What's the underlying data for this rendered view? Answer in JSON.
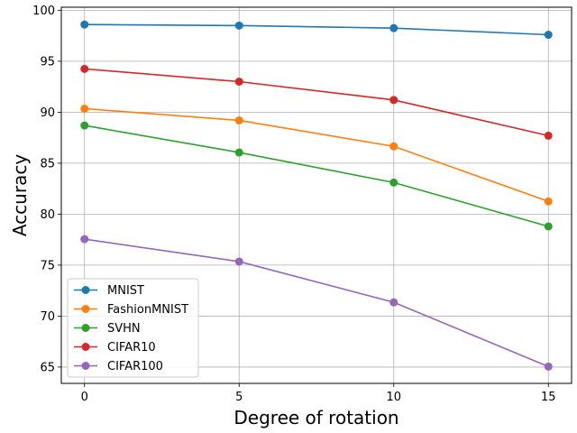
{
  "chart_data": {
    "type": "line",
    "title": "",
    "xlabel": "Degree of rotation",
    "ylabel": "Accuracy",
    "x": [
      0,
      5,
      10,
      15
    ],
    "xticks": [
      0,
      5,
      10,
      15
    ],
    "yticks": [
      65,
      70,
      75,
      80,
      85,
      90,
      95,
      100
    ],
    "xlim": [
      -0.75,
      15.75
    ],
    "ylim": [
      63.4,
      100.3
    ],
    "grid": true,
    "legend_position": "lower-left",
    "series": [
      {
        "name": "MNIST",
        "color": "#1f77b4",
        "values": [
          98.6,
          98.5,
          98.25,
          97.6
        ]
      },
      {
        "name": "FashionMNIST",
        "color": "#ff7f0e",
        "values": [
          90.35,
          89.2,
          86.65,
          81.25
        ]
      },
      {
        "name": "SVHN",
        "color": "#2ca02c",
        "values": [
          88.7,
          86.05,
          83.1,
          78.8
        ]
      },
      {
        "name": "CIFAR10",
        "color": "#d62728",
        "values": [
          94.25,
          93.0,
          91.2,
          87.7
        ]
      },
      {
        "name": "CIFAR100",
        "color": "#9467bd",
        "values": [
          77.55,
          75.35,
          71.35,
          65.05
        ]
      }
    ]
  }
}
